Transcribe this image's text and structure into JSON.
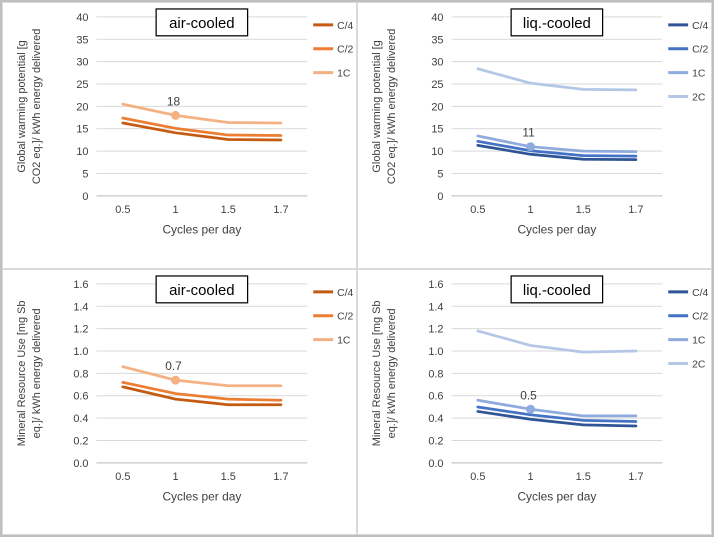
{
  "figure": {
    "background": "#ffffff",
    "outer_border_color": "#bfbfbf",
    "panel_border_color": "#d9d9d9",
    "grid_color": "#d9d9d9",
    "axis_color": "#bfbfbf",
    "text_color": "#404040",
    "title_border_color": "#000000"
  },
  "chart_data": [
    {
      "type": "line",
      "title": "air-cooled",
      "ylabel_lines": [
        "Global warming potential [g",
        "CO2 eq.]/ kWh energy delivered"
      ],
      "xlabel": "Cycles per day",
      "categories": [
        "0.5",
        "1",
        "1.5",
        "1.7"
      ],
      "ylim": [
        0,
        40
      ],
      "yticks": [
        "0",
        "5",
        "10",
        "15",
        "20",
        "25",
        "30",
        "35",
        "40"
      ],
      "grid": true,
      "legend_position": "right",
      "series": [
        {
          "name": "C/4",
          "color": "#c55a11",
          "values": [
            16.3,
            14.1,
            12.6,
            12.5
          ]
        },
        {
          "name": "C/2",
          "color": "#ed7d31",
          "values": [
            17.4,
            15.1,
            13.6,
            13.5
          ]
        },
        {
          "name": "1C",
          "color": "#f4b183",
          "values": [
            20.5,
            18.0,
            16.4,
            16.3
          ]
        }
      ],
      "annotation": {
        "text": "18",
        "series": "1C",
        "category": "1"
      }
    },
    {
      "type": "line",
      "title": "liq.-cooled",
      "ylabel_lines": [
        "Global warming potential [g",
        "CO2 eq.]/ kWh energy delivered"
      ],
      "xlabel": "Cycles per day",
      "categories": [
        "0.5",
        "1",
        "1.5",
        "1.7"
      ],
      "ylim": [
        0,
        40
      ],
      "yticks": [
        "0",
        "5",
        "10",
        "15",
        "20",
        "25",
        "30",
        "35",
        "40"
      ],
      "grid": true,
      "legend_position": "right",
      "series": [
        {
          "name": "C/4",
          "color": "#2f5597",
          "values": [
            11.3,
            9.3,
            8.2,
            8.1
          ]
        },
        {
          "name": "C/2",
          "color": "#4472c4",
          "values": [
            12.2,
            10.1,
            9.0,
            8.9
          ]
        },
        {
          "name": "1C",
          "color": "#8faadc",
          "values": [
            13.4,
            11.0,
            10.0,
            9.9
          ]
        },
        {
          "name": "2C",
          "color": "#b4c7e7",
          "values": [
            28.4,
            25.2,
            23.8,
            23.7
          ]
        }
      ],
      "annotation": {
        "text": "11",
        "series": "1C",
        "category": "1"
      }
    },
    {
      "type": "line",
      "title": "air-cooled",
      "ylabel_lines": [
        "Mineral Resource Use [mg Sb",
        "eq.]/ kWh energy delivered"
      ],
      "xlabel": "Cycles per day",
      "categories": [
        "0.5",
        "1",
        "1.5",
        "1.7"
      ],
      "ylim": [
        0,
        1.6
      ],
      "yticks": [
        "0.0",
        "0.2",
        "0.4",
        "0.6",
        "0.8",
        "1.0",
        "1.2",
        "1.4",
        "1.6"
      ],
      "grid": true,
      "legend_position": "right",
      "series": [
        {
          "name": "C/4",
          "color": "#c55a11",
          "values": [
            0.68,
            0.57,
            0.52,
            0.52
          ]
        },
        {
          "name": "C/2",
          "color": "#ed7d31",
          "values": [
            0.72,
            0.62,
            0.57,
            0.56
          ]
        },
        {
          "name": "1C",
          "color": "#f4b183",
          "values": [
            0.86,
            0.74,
            0.69,
            0.69
          ]
        }
      ],
      "annotation": {
        "text": "0.7",
        "series": "1C",
        "category": "1"
      }
    },
    {
      "type": "line",
      "title": "liq.-cooled",
      "ylabel_lines": [
        "Mineral Resource Use [mg Sb",
        "eq.]/ kWh energy delivered"
      ],
      "xlabel": "Cycles per day",
      "categories": [
        "0.5",
        "1",
        "1.5",
        "1.7"
      ],
      "ylim": [
        0,
        1.6
      ],
      "yticks": [
        "0.0",
        "0.2",
        "0.4",
        "0.6",
        "0.8",
        "1.0",
        "1.2",
        "1.4",
        "1.6"
      ],
      "grid": true,
      "legend_position": "right",
      "series": [
        {
          "name": "C/4",
          "color": "#2f5597",
          "values": [
            0.46,
            0.39,
            0.34,
            0.33
          ]
        },
        {
          "name": "C/2",
          "color": "#4472c4",
          "values": [
            0.5,
            0.43,
            0.38,
            0.37
          ]
        },
        {
          "name": "1C",
          "color": "#8faadc",
          "values": [
            0.56,
            0.48,
            0.42,
            0.42
          ]
        },
        {
          "name": "2C",
          "color": "#b4c7e7",
          "values": [
            1.18,
            1.05,
            0.99,
            1.0
          ]
        }
      ],
      "annotation": {
        "text": "0.5",
        "series": "1C",
        "category": "1"
      }
    }
  ]
}
